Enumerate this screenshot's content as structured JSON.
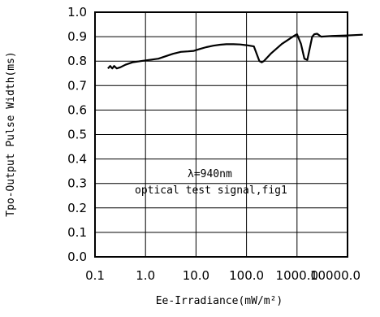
{
  "chart_data": {
    "type": "line",
    "title": "",
    "xlabel": "Ee-Irradiance(mW/m²)",
    "ylabel": "Tpo-Output Pulse Width(ms)",
    "x_scale": "log",
    "xlim": [
      0.1,
      10000.0
    ],
    "ylim": [
      0.0,
      1.0
    ],
    "x_tick_labels": [
      "0.1",
      "1.0",
      "10.0",
      "100.0",
      "1000.0",
      "10000.0"
    ],
    "y_tick_labels": [
      "0.0",
      "0.1",
      "0.2",
      "0.3",
      "0.4",
      "0.5",
      "0.6",
      "0.7",
      "0.8",
      "0.9",
      "1.0"
    ],
    "grid": true,
    "annotations": [
      "λ=940nm",
      "optical test signal,fig1"
    ],
    "series": [
      {
        "color": "#000000",
        "x": [
          0.18,
          0.2,
          0.22,
          0.24,
          0.27,
          0.32,
          0.4,
          0.55,
          0.8,
          1.2,
          1.8,
          2.5,
          3.5,
          5,
          7,
          9,
          12,
          16,
          22,
          30,
          40,
          55,
          75,
          100,
          140,
          180,
          200,
          220,
          300,
          500,
          900,
          1000,
          1200,
          1400,
          1600,
          2000,
          2200,
          2500,
          3000,
          5000,
          10000,
          20000
        ],
        "y": [
          0.77,
          0.78,
          0.77,
          0.78,
          0.77,
          0.775,
          0.785,
          0.795,
          0.8,
          0.805,
          0.81,
          0.82,
          0.83,
          0.838,
          0.84,
          0.842,
          0.85,
          0.857,
          0.863,
          0.867,
          0.869,
          0.869,
          0.868,
          0.865,
          0.86,
          0.8,
          0.795,
          0.8,
          0.83,
          0.87,
          0.905,
          0.91,
          0.87,
          0.81,
          0.805,
          0.9,
          0.91,
          0.912,
          0.9,
          0.903,
          0.905,
          0.908
        ]
      }
    ]
  }
}
